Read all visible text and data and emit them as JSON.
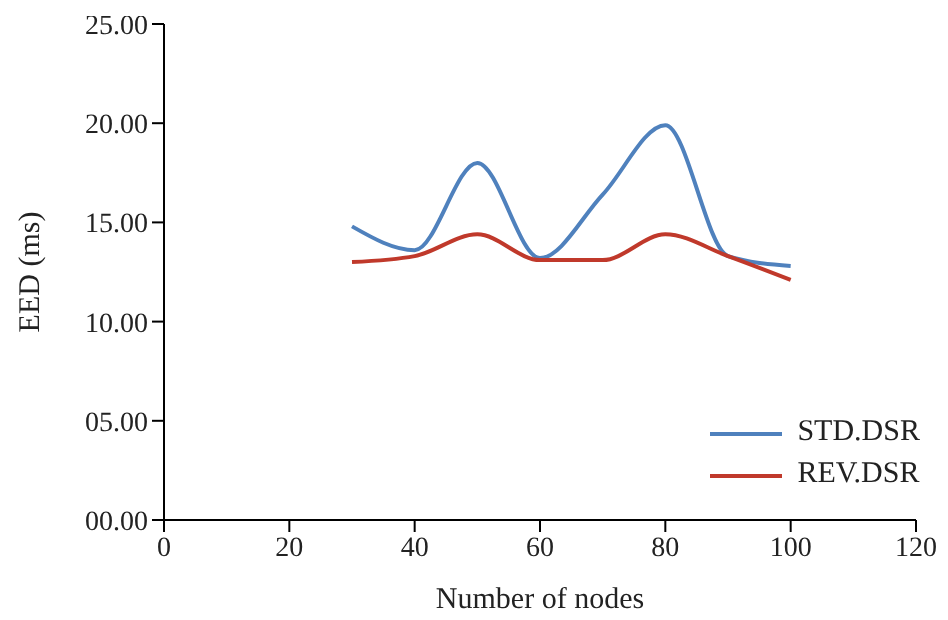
{
  "chart_data": {
    "type": "line",
    "xlabel": "Number of nodes",
    "ylabel": "EED (ms)",
    "x": [
      30,
      40,
      50,
      60,
      70,
      80,
      90,
      100
    ],
    "series": [
      {
        "name": "STD.DSR",
        "color": "#4f81bd",
        "values": [
          14.8,
          13.6,
          18.0,
          13.2,
          16.4,
          19.9,
          13.3,
          12.8
        ]
      },
      {
        "name": "REV.DSR",
        "color": "#c0392b",
        "values": [
          13.0,
          13.3,
          14.4,
          13.1,
          13.1,
          14.4,
          13.3,
          12.1
        ]
      }
    ],
    "xlim": [
      0,
      120
    ],
    "xticks": [
      0,
      20,
      40,
      60,
      80,
      100,
      120
    ],
    "ylim": [
      0,
      25
    ],
    "yticks": [
      {
        "value": 0,
        "label": "00.00"
      },
      {
        "value": 5,
        "label": "05.00"
      },
      {
        "value": 10,
        "label": "10.00"
      },
      {
        "value": 15,
        "label": "15.00"
      },
      {
        "value": 20,
        "label": "20.00"
      },
      {
        "value": 25,
        "label": "25.00"
      }
    ],
    "grid": false,
    "legend": "bottom right",
    "marker": "none",
    "line_style": "solid"
  }
}
